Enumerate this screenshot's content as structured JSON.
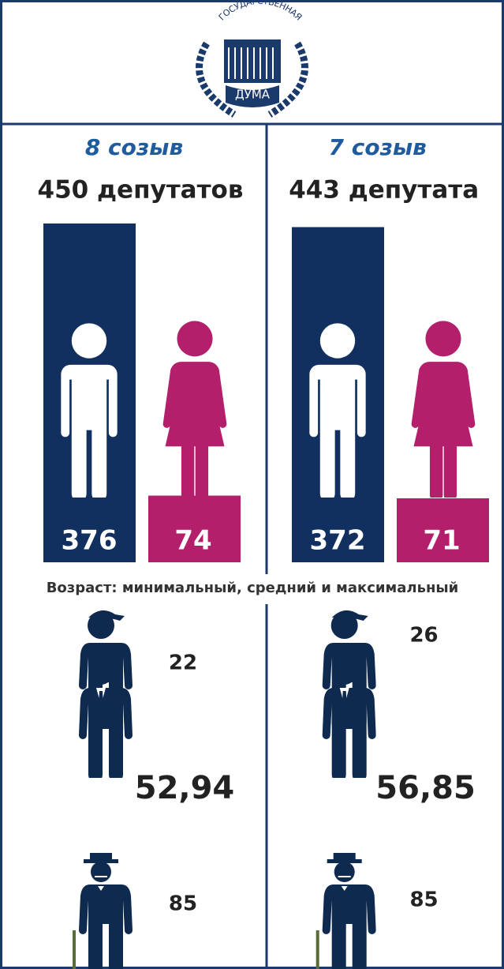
{
  "logo": {
    "arc": "ГОСУДАРСТВЕННАЯ",
    "name": "ДУМА"
  },
  "columns": [
    {
      "title": "8 созыв",
      "total": "450 депутатов",
      "men": 376,
      "women": 74,
      "ages": [
        "22",
        "52,94",
        "85"
      ]
    },
    {
      "title": "7 созыв",
      "total": "443 депутата",
      "men": 372,
      "women": 71,
      "ages": [
        "26",
        "56,85",
        "85"
      ]
    }
  ],
  "age_title": "Возраст: минимальный, средний и максимальный"
}
